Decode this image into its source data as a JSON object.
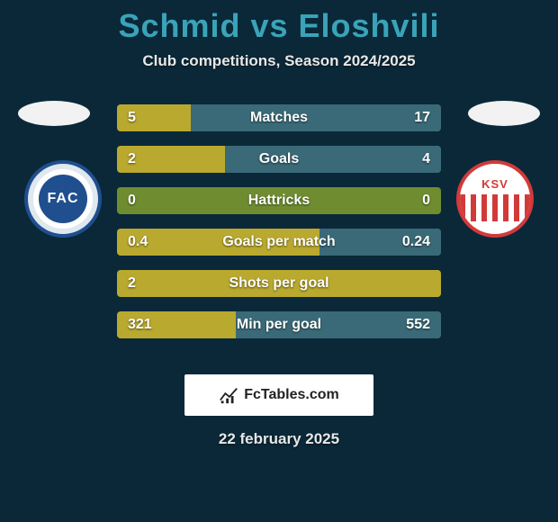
{
  "title": "Schmid vs Eloshvili",
  "subtitle": "Club competitions, Season 2024/2025",
  "date": "22 february 2025",
  "footer_label": "FcTables.com",
  "crest_left_text": "FAC",
  "crest_right_text": "KSV",
  "colors": {
    "background": "#0a2838",
    "title": "#3aa3b8",
    "text_light": "#e8e8e8",
    "bar_left": "#b9a92e",
    "bar_right": "#3a6a78",
    "bar_track": "#6f8d30",
    "crest_left_primary": "#1f4f8f",
    "crest_right_primary": "#d23a3a",
    "footer_bg": "#ffffff"
  },
  "bar_layout": {
    "height": 30,
    "gap": 16,
    "radius": 4,
    "label_fontsize": 16
  },
  "stats": [
    {
      "label": "Matches",
      "left_display": "5",
      "right_display": "17",
      "left_val": 5,
      "right_val": 17
    },
    {
      "label": "Goals",
      "left_display": "2",
      "right_display": "4",
      "left_val": 2,
      "right_val": 4
    },
    {
      "label": "Hattricks",
      "left_display": "0",
      "right_display": "0",
      "left_val": 0,
      "right_val": 0
    },
    {
      "label": "Goals per match",
      "left_display": "0.4",
      "right_display": "0.24",
      "left_val": 0.4,
      "right_val": 0.24
    },
    {
      "label": "Shots per goal",
      "left_display": "2",
      "right_display": "",
      "left_val": 2,
      "right_val": 0
    },
    {
      "label": "Min per goal",
      "left_display": "321",
      "right_display": "552",
      "left_val": 321,
      "right_val": 552
    }
  ]
}
